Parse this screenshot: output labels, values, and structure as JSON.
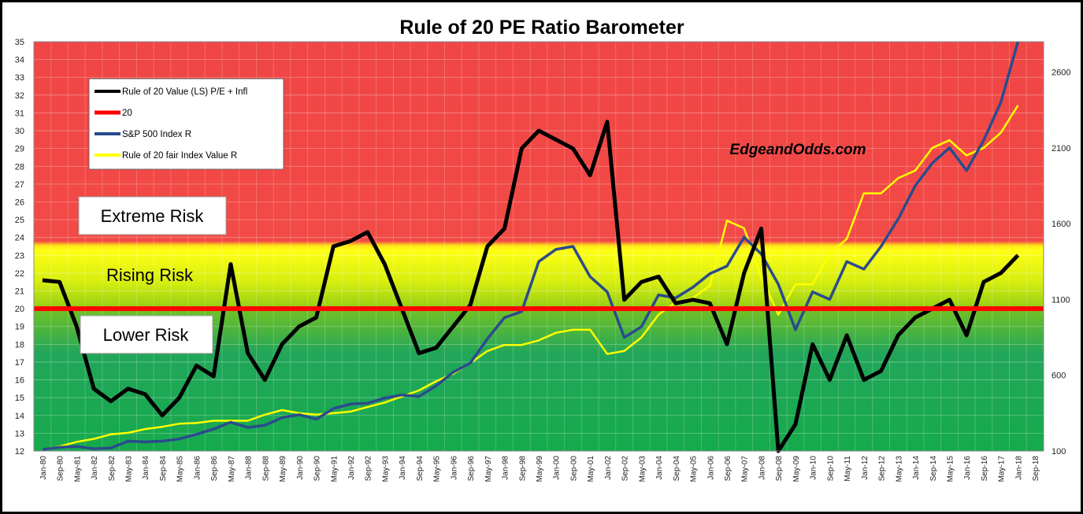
{
  "chart_data": {
    "type": "line",
    "title": "Rule of 20 PE Ratio Barometer",
    "watermark": "EdgeandOdds.com",
    "left_axis": {
      "min": 12,
      "max": 35,
      "ticks": [
        12,
        13,
        14,
        15,
        16,
        17,
        18,
        19,
        20,
        21,
        22,
        23,
        24,
        25,
        26,
        27,
        28,
        29,
        30,
        31,
        32,
        33,
        34,
        35
      ]
    },
    "right_axis": {
      "min": 100,
      "max": 2800,
      "ticks": [
        100,
        600,
        1100,
        1600,
        2100,
        2600
      ]
    },
    "x_ticks": [
      "Jan-80",
      "Sep-80",
      "May-81",
      "Jan-82",
      "Sep-82",
      "May-83",
      "Jan-84",
      "Sep-84",
      "May-85",
      "Jan-86",
      "Sep-86",
      "May-87",
      "Jan-88",
      "Sep-88",
      "May-89",
      "Jan-90",
      "Sep-90",
      "May-91",
      "Jan-92",
      "Sep-92",
      "May-93",
      "Jan-94",
      "Sep-94",
      "May-95",
      "Jan-96",
      "Sep-96",
      "May-97",
      "Jan-98",
      "Sep-98",
      "May-99",
      "Jan-00",
      "Sep-00",
      "May-01",
      "Jan-02",
      "Sep-02",
      "May-03",
      "Jan-04",
      "Sep-04",
      "May-05",
      "Jan-06",
      "Sep-06",
      "May-07",
      "Jan-08",
      "Sep-08",
      "May-09",
      "Jan-10",
      "Sep-10",
      "May-11",
      "Jan-12",
      "Sep-12",
      "May-13",
      "Jan-14",
      "Sep-14",
      "May-15",
      "Jan-16",
      "Sep-16",
      "May-17",
      "Jan-18",
      "Sep-18"
    ],
    "zones": [
      {
        "label": "Extreme Risk",
        "from": 23.5,
        "to": 35,
        "color": "#f04848"
      },
      {
        "label": "Rising Risk",
        "from": 20,
        "to": 23.5,
        "color": "#b8dc10"
      },
      {
        "label": "Lower Risk",
        "from": 12,
        "to": 20,
        "color": "#1aa858"
      }
    ],
    "series": [
      {
        "name": "Rule of 20 Value (LS) P/E + Infl",
        "axis": "left",
        "color": "#000000",
        "x": [
          "Jan-80",
          "Sep-80",
          "May-81",
          "Jan-82",
          "Sep-82",
          "May-83",
          "Jan-84",
          "Sep-84",
          "May-85",
          "Jan-86",
          "Sep-86",
          "May-87",
          "Jan-88",
          "Sep-88",
          "May-89",
          "Jan-90",
          "Sep-90",
          "May-91",
          "Jan-92",
          "Sep-92",
          "May-93",
          "Jan-94",
          "Sep-94",
          "May-95",
          "Jan-96",
          "Sep-96",
          "May-97",
          "Jan-98",
          "Sep-98",
          "May-99",
          "Jan-00",
          "Sep-00",
          "May-01",
          "Jan-02",
          "Sep-02",
          "May-03",
          "Jan-04",
          "Sep-04",
          "May-05",
          "Jan-06",
          "Sep-06",
          "May-07",
          "Jan-08",
          "Sep-08",
          "May-09",
          "Jan-10",
          "Sep-10",
          "May-11",
          "Jan-12",
          "Sep-12",
          "May-13",
          "Jan-14",
          "Sep-14",
          "May-15",
          "Jan-16",
          "Sep-16",
          "May-17",
          "Jan-18"
        ],
        "values": [
          21.6,
          21.5,
          19.0,
          15.5,
          14.8,
          15.5,
          15.2,
          14.0,
          15.0,
          16.8,
          16.2,
          22.5,
          17.5,
          16.0,
          18.0,
          19.0,
          19.5,
          23.5,
          23.8,
          24.3,
          22.5,
          20.0,
          17.5,
          17.8,
          19.0,
          20.2,
          23.5,
          24.5,
          29.0,
          30.0,
          29.5,
          29.0,
          27.5,
          30.5,
          20.5,
          21.5,
          21.8,
          20.3,
          20.5,
          20.3,
          18.0,
          22.0,
          24.5,
          12.0,
          13.5,
          18.0,
          16.0,
          18.5,
          16.0,
          16.5,
          18.5,
          19.5,
          20.0,
          20.5,
          18.5,
          21.5,
          22.0,
          23.0
        ]
      },
      {
        "name": "20",
        "axis": "left",
        "color": "#ff0000",
        "x": [
          "Jan-80",
          "Jan-18"
        ],
        "values": [
          20,
          20
        ]
      },
      {
        "name": "S&P 500 Index R",
        "axis": "right",
        "color": "#2b4b8c",
        "x": [
          "Jan-80",
          "Sep-80",
          "May-81",
          "Jan-82",
          "Sep-82",
          "May-83",
          "Jan-84",
          "Sep-84",
          "May-85",
          "Jan-86",
          "Sep-86",
          "May-87",
          "Jan-88",
          "Sep-88",
          "May-89",
          "Jan-90",
          "Sep-90",
          "May-91",
          "Jan-92",
          "Sep-92",
          "May-93",
          "Jan-94",
          "Sep-94",
          "May-95",
          "Jan-96",
          "Sep-96",
          "May-97",
          "Jan-98",
          "Sep-98",
          "May-99",
          "Jan-00",
          "Sep-00",
          "May-01",
          "Jan-02",
          "Sep-02",
          "May-03",
          "Jan-04",
          "Sep-04",
          "May-05",
          "Jan-06",
          "Sep-06",
          "May-07",
          "Jan-08",
          "Sep-08",
          "May-09",
          "Jan-10",
          "Sep-10",
          "May-11",
          "Jan-12",
          "Sep-12",
          "May-13",
          "Jan-14",
          "Sep-14",
          "May-15",
          "Jan-16",
          "Sep-16",
          "May-17",
          "Jan-18"
        ],
        "values": [
          110,
          125,
          130,
          115,
          120,
          165,
          160,
          165,
          180,
          210,
          245,
          290,
          255,
          270,
          320,
          340,
          310,
          380,
          410,
          415,
          450,
          470,
          460,
          530,
          620,
          680,
          840,
          980,
          1020,
          1350,
          1430,
          1450,
          1250,
          1150,
          850,
          920,
          1130,
          1110,
          1180,
          1270,
          1320,
          1510,
          1400,
          1200,
          900,
          1150,
          1100,
          1350,
          1300,
          1450,
          1630,
          1850,
          2000,
          2100,
          1950,
          2150,
          2400,
          2800
        ]
      },
      {
        "name": "Rule of 20 fair Index Value R",
        "axis": "right",
        "color": "#ffff00",
        "x": [
          "Jan-80",
          "Sep-80",
          "May-81",
          "Jan-82",
          "Sep-82",
          "May-83",
          "Jan-84",
          "Sep-84",
          "May-85",
          "Jan-86",
          "Sep-86",
          "May-87",
          "Jan-88",
          "Sep-88",
          "May-89",
          "Jan-90",
          "Sep-90",
          "May-91",
          "Jan-92",
          "Sep-92",
          "May-93",
          "Jan-94",
          "Sep-94",
          "May-95",
          "Jan-96",
          "Sep-96",
          "May-97",
          "Jan-98",
          "Sep-98",
          "May-99",
          "Jan-00",
          "Sep-00",
          "May-01",
          "Jan-02",
          "Sep-02",
          "May-03",
          "Jan-04",
          "Sep-04",
          "May-05",
          "Jan-06",
          "Sep-06",
          "May-07",
          "Jan-08",
          "Sep-08",
          "May-09",
          "Jan-10",
          "Sep-10",
          "May-11",
          "Jan-12",
          "Sep-12",
          "May-13",
          "Jan-14",
          "Sep-14",
          "May-15",
          "Jan-16",
          "Sep-16",
          "May-17",
          "Jan-18"
        ],
        "values": [
          110,
          130,
          160,
          180,
          210,
          220,
          245,
          260,
          280,
          285,
          300,
          300,
          300,
          340,
          370,
          350,
          340,
          350,
          360,
          390,
          420,
          460,
          500,
          560,
          610,
          680,
          760,
          800,
          800,
          830,
          880,
          900,
          900,
          740,
          760,
          850,
          1000,
          1080,
          1110,
          1190,
          1620,
          1570,
          1250,
          1000,
          1200,
          1200,
          1400,
          1500,
          1800,
          1800,
          1900,
          1950,
          2100,
          2150,
          2050,
          2100,
          2200,
          2380
        ]
      }
    ],
    "legend": {
      "placement": "top-left"
    },
    "grid": true
  }
}
